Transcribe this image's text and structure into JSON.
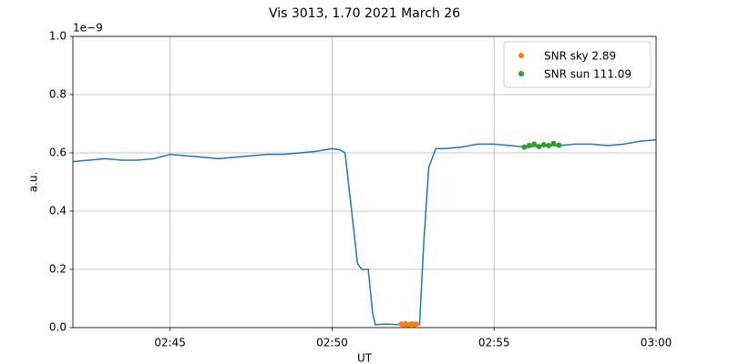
{
  "chart_data": {
    "type": "line",
    "title": "Vis 3013, 1.70 2021 March 26",
    "x_label": "UT",
    "y_label": "a.u.",
    "y_offset_label": "1e−9",
    "xlim": [
      "02:42",
      "03:00"
    ],
    "xticks": [
      "02:45",
      "02:50",
      "02:55",
      "03:00"
    ],
    "ylim": [
      0,
      1
    ],
    "yticks": [
      {
        "value": 0,
        "label": "0.0"
      },
      0.2,
      0.4,
      0.6,
      0.8,
      {
        "value": 1,
        "label": "1.0"
      }
    ],
    "grid": true,
    "legend": "upper right",
    "series": [
      {
        "color": "#1f77b4",
        "marker": "line",
        "x": [
          "02:42:00",
          "02:42:30",
          "02:43:00",
          "02:43:30",
          "02:44:00",
          "02:44:30",
          "02:45:00",
          "02:45:30",
          "02:46:00",
          "02:46:30",
          "02:47:00",
          "02:47:30",
          "02:48:00",
          "02:48:30",
          "02:49:00",
          "02:49:30",
          "02:50:00",
          "02:50:15",
          "02:50:24",
          "02:50:35",
          "02:50:47",
          "02:50:55",
          "02:51:07",
          "02:51:15",
          "02:51:20",
          "02:51:40",
          "02:52:00",
          "02:52:20",
          "02:52:42",
          "02:52:50",
          "02:52:59",
          "02:53:12",
          "02:53:30",
          "02:54:00",
          "02:54:30",
          "02:55:00",
          "02:55:30",
          "02:56:00",
          "02:56:30",
          "02:57:00",
          "02:57:30",
          "02:58:00",
          "02:58:30",
          "02:59:00",
          "02:59:30",
          "03:00:00"
        ],
        "values": [
          0.57,
          0.575,
          0.58,
          0.575,
          0.575,
          0.58,
          0.595,
          0.59,
          0.585,
          0.58,
          0.585,
          0.59,
          0.595,
          0.595,
          0.6,
          0.605,
          0.615,
          0.61,
          0.6,
          0.42,
          0.22,
          0.2,
          0.2,
          0.05,
          0.01,
          0.012,
          0.01,
          0.012,
          0.01,
          0.3,
          0.55,
          0.615,
          0.615,
          0.62,
          0.63,
          0.63,
          0.625,
          0.62,
          0.625,
          0.625,
          0.63,
          0.63,
          0.625,
          0.63,
          0.64,
          0.645
        ]
      },
      {
        "name": "SNR sky 2.89",
        "color": "#ff7f0e",
        "marker": "dot",
        "x": [
          "02:52:08",
          "02:52:12",
          "02:52:16",
          "02:52:20",
          "02:52:24",
          "02:52:28",
          "02:52:32",
          "02:52:36"
        ],
        "values": [
          0.012,
          0.01,
          0.014,
          0.009,
          0.011,
          0.013,
          0.01,
          0.012
        ]
      },
      {
        "name": "SNR sun 111.09",
        "color": "#2ca02c",
        "marker": "dot",
        "x": [
          "02:55:56",
          "02:56:05",
          "02:56:14",
          "02:56:23",
          "02:56:32",
          "02:56:41",
          "02:56:50",
          "02:57:00"
        ],
        "values": [
          0.62,
          0.625,
          0.63,
          0.622,
          0.628,
          0.625,
          0.632,
          0.626
        ]
      }
    ]
  }
}
